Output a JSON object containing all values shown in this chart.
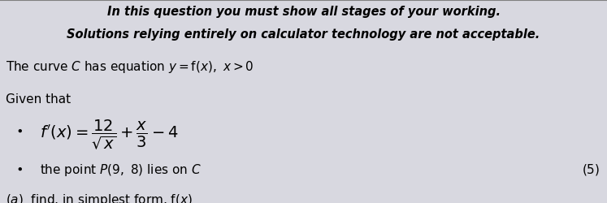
{
  "bg_color": "#d8d8e0",
  "header_line1": "In this question you must show all stages of your working.",
  "header_line2": "Solutions relying entirely on calculator technology are not acceptable.",
  "header_fontsize": 10.5,
  "body_fontsize": 11
}
